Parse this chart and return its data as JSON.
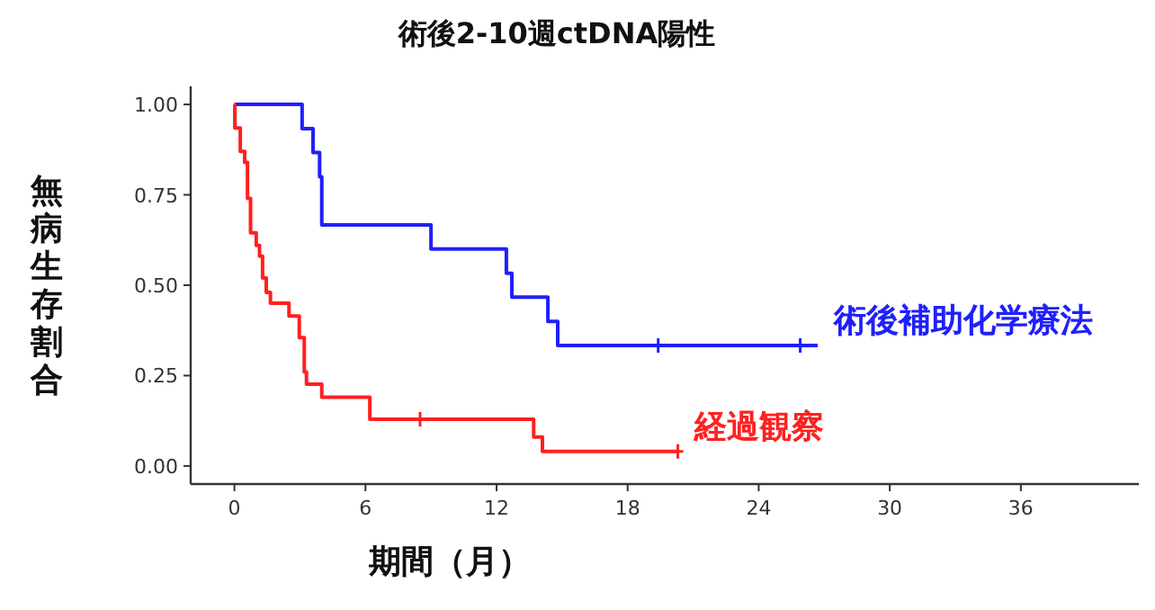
{
  "chart_data": {
    "type": "step",
    "title": "術後2-10週ctDNA陽性",
    "xlabel": "期間（月）",
    "ylabel": "無病生存割合",
    "xlim": [
      -2,
      41.4
    ],
    "ylim": [
      -0.05,
      1.05
    ],
    "xticks": [
      0,
      6,
      12,
      18,
      24,
      30,
      36
    ],
    "yticks": [
      {
        "value": 0,
        "label": "0.00"
      },
      {
        "value": 0.25,
        "label": "0.25"
      },
      {
        "value": 0.5,
        "label": "0.50"
      },
      {
        "value": 0.75,
        "label": "0.75"
      },
      {
        "value": 1,
        "label": "1.00"
      }
    ],
    "grid": false,
    "series": [
      {
        "name": "術後補助化学療法",
        "color": "#1f1fff",
        "x": [
          0,
          3.1,
          3.6,
          3.9,
          4.0,
          9.0,
          12.45,
          12.7,
          14.35,
          14.8,
          26.7
        ],
        "values": [
          1,
          0.933,
          0.867,
          0.8,
          0.667,
          0.6,
          0.533,
          0.467,
          0.4,
          0.333,
          0.333
        ]
      },
      {
        "name": "経過観察",
        "color": "#ff2020",
        "x": [
          0,
          0.02,
          0.27,
          0.47,
          0.6,
          0.74,
          1.0,
          1.15,
          1.29,
          1.46,
          1.65,
          2.5,
          2.97,
          3.2,
          3.3,
          4.0,
          6.2,
          13.7,
          14.1,
          20.3
        ],
        "values": [
          1,
          0.935,
          0.87,
          0.84,
          0.74,
          0.645,
          0.61,
          0.58,
          0.52,
          0.48,
          0.45,
          0.415,
          0.355,
          0.26,
          0.226,
          0.19,
          0.129,
          0.08,
          0.04,
          0.04
        ]
      },
      {
        "type": "scatter",
        "marker": "cross",
        "color": "#1f1fff",
        "x": [
          19.4,
          25.9
        ],
        "values": [
          0.333,
          0.333
        ]
      },
      {
        "type": "scatter",
        "marker": "cross",
        "color": "#ff2020",
        "x": [
          8.5,
          20.3
        ],
        "values": [
          0.129,
          0.04
        ]
      }
    ]
  }
}
